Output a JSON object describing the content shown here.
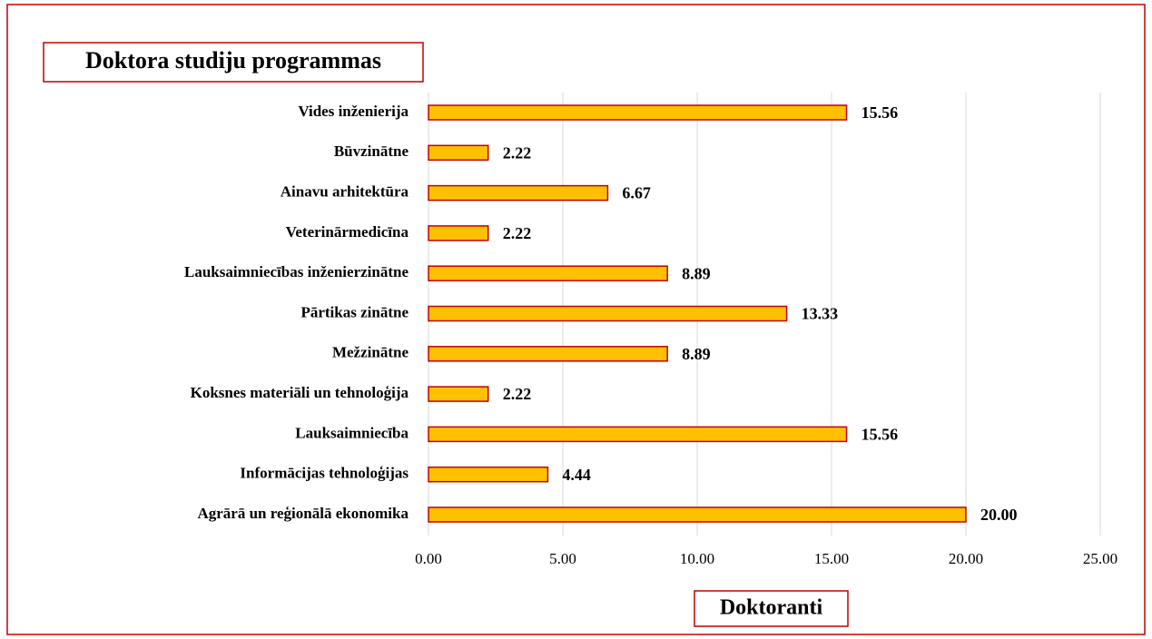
{
  "chart_data": {
    "type": "bar",
    "orientation": "horizontal",
    "title": "Doktora studiju programmas",
    "x_label": "Doktoranti",
    "categories": [
      "Vides inženierija",
      "Būvzinātne",
      "Ainavu arhitektūra",
      "Veterinārmedicīna",
      "Lauksaimniecības inženierzinātne",
      "Pārtikas zinātne",
      "Mežzinātne",
      "Koksnes materiāli un tehnoloģija",
      "Lauksaimniecība",
      "Informācijas tehnoloģijas",
      "Agrārā un reģionālā ekonomika"
    ],
    "values": [
      15.56,
      2.22,
      6.67,
      2.22,
      8.89,
      13.33,
      8.89,
      2.22,
      15.56,
      4.44,
      20
    ],
    "value_labels": [
      "15.56",
      "2.22",
      "6.67",
      "2.22",
      "8.89",
      "13.33",
      "8.89",
      "2.22",
      "15.56",
      "4.44",
      "20.00"
    ],
    "color": "#ffc000",
    "edge_color": "#c00000",
    "xlim": [
      0,
      25
    ],
    "xticks": [
      {
        "value": 0,
        "label": "0.00"
      },
      {
        "value": 5,
        "label": "5.00"
      },
      {
        "value": 10,
        "label": "10.00"
      },
      {
        "value": 15,
        "label": "15.00"
      },
      {
        "value": 20,
        "label": "20.00"
      },
      {
        "value": 25,
        "label": "25.00"
      }
    ],
    "grid": true
  }
}
